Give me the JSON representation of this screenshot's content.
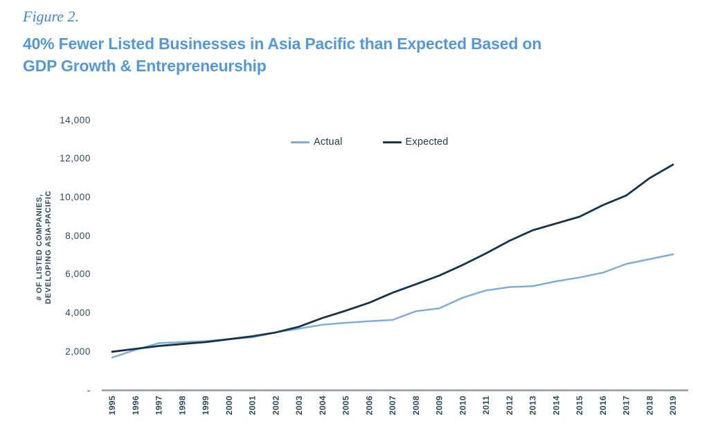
{
  "header": {
    "figure_label": "Figure 2.",
    "title_line1": "40% Fewer Listed Businesses in Asia Pacific than Expected Based on",
    "title_line2": "GDP Growth & Entrepreneurship"
  },
  "colors": {
    "title_blue": "#5598D4",
    "figure_label_blue": "#4787C8",
    "tick_text_navy": "#2E4B5C",
    "axis_line_gray": "#939BA1",
    "actual_line_blue": "#7EADD9",
    "expected_line_navy": "#16334A"
  },
  "chart_data": {
    "type": "line",
    "title": "40% Fewer Listed Businesses in Asia Pacific than Expected Based on GDP Growth & Entrepreneurship",
    "xlabel": "",
    "ylabel": "# OF LISTED COMPANIES, DEVELOPING ASIA-PACIFIC",
    "ylabel_lines": [
      "# OF LISTED COMPANIES,",
      "DEVELOPING ASIA-PACIFIC"
    ],
    "x": [
      1995,
      1996,
      1997,
      1998,
      1999,
      2000,
      2001,
      2002,
      2003,
      2004,
      2005,
      2006,
      2007,
      2008,
      2009,
      2010,
      2011,
      2012,
      2013,
      2014,
      2015,
      2016,
      2017,
      2018,
      2019
    ],
    "series": [
      {
        "name": "Actual",
        "color": "#7EADD9",
        "values": [
          1700,
          2100,
          2450,
          2500,
          2550,
          2650,
          2750,
          3000,
          3200,
          3400,
          3500,
          3580,
          3650,
          4100,
          4250,
          4800,
          5180,
          5350,
          5400,
          5650,
          5850,
          6100,
          6550,
          6800,
          7050
        ]
      },
      {
        "name": "Expected",
        "color": "#16334A",
        "values": [
          2000,
          2150,
          2300,
          2400,
          2500,
          2650,
          2800,
          3000,
          3300,
          3750,
          4130,
          4540,
          5060,
          5500,
          5950,
          6500,
          7100,
          7750,
          8300,
          8650,
          9000,
          9600,
          10100,
          11000,
          11700
        ]
      }
    ],
    "ylim": [
      0,
      14000
    ],
    "yticks": [
      {
        "label": "-",
        "value": 0
      },
      {
        "label": "2,000",
        "value": 2000
      },
      {
        "label": "4,000",
        "value": 4000
      },
      {
        "label": "6,000",
        "value": 6000
      },
      {
        "label": "8,000",
        "value": 8000
      },
      {
        "label": "10,000",
        "value": 10000
      },
      {
        "label": "12,000",
        "value": 12000
      },
      {
        "label": "14,000",
        "value": 14000
      }
    ],
    "grid": false,
    "legend_position": "top-center"
  }
}
